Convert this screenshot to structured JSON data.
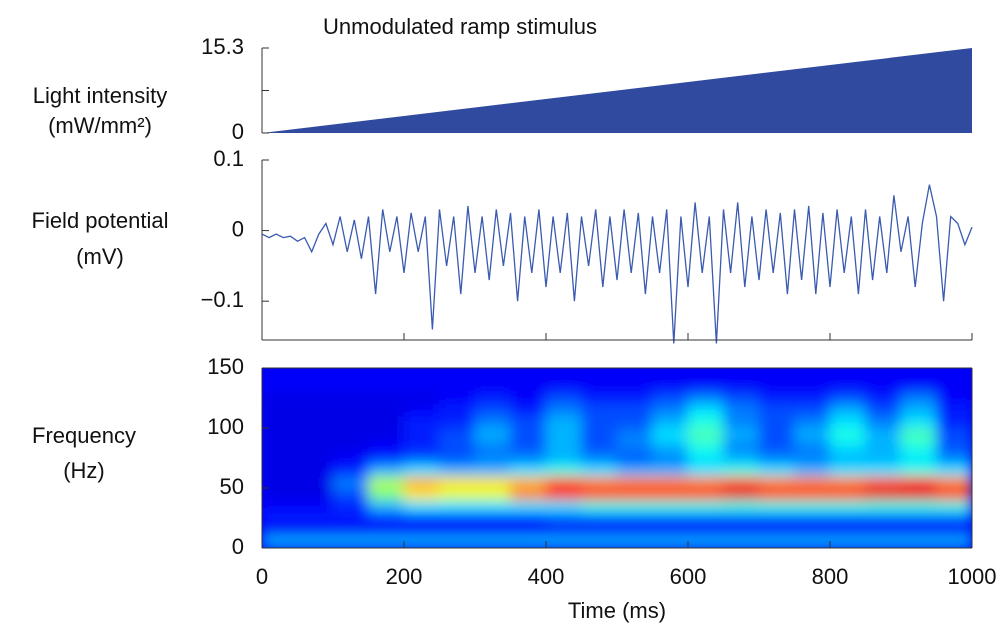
{
  "title": "Unmodulated ramp stimulus",
  "chart_data": [
    {
      "type": "area",
      "ylabel": [
        "Light intensity",
        "(mW/mm²)"
      ],
      "color": "#2f4a9f",
      "x": [
        0,
        1000
      ],
      "values": [
        0,
        15.3
      ],
      "xlim": [
        0,
        1000
      ],
      "ylim": [
        0,
        15.3
      ],
      "yticks": [
        0,
        15.3
      ],
      "yminorticks": [
        7.65
      ]
    },
    {
      "type": "line",
      "ylabel": [
        "Field potential",
        "(mV)"
      ],
      "color": "#3a5bb0",
      "x": [
        0,
        10,
        20,
        30,
        40,
        50,
        60,
        70,
        80,
        90,
        100,
        110,
        120,
        130,
        140,
        150,
        160,
        170,
        180,
        190,
        200,
        210,
        220,
        230,
        240,
        250,
        260,
        270,
        280,
        290,
        300,
        310,
        320,
        330,
        340,
        350,
        360,
        370,
        380,
        390,
        400,
        410,
        420,
        430,
        440,
        450,
        460,
        470,
        480,
        490,
        500,
        510,
        520,
        530,
        540,
        550,
        560,
        570,
        580,
        590,
        600,
        610,
        620,
        630,
        640,
        650,
        660,
        670,
        680,
        690,
        700,
        710,
        720,
        730,
        740,
        750,
        760,
        770,
        780,
        790,
        800,
        810,
        820,
        830,
        840,
        850,
        860,
        870,
        880,
        890,
        900,
        910,
        920,
        930,
        940,
        950,
        960,
        970,
        980,
        990,
        1000
      ],
      "values": [
        -0.005,
        -0.01,
        -0.005,
        -0.01,
        -0.008,
        -0.015,
        -0.01,
        -0.03,
        -0.005,
        0.01,
        -0.02,
        0.02,
        -0.03,
        0.015,
        -0.04,
        0.02,
        -0.09,
        0.03,
        -0.03,
        0.02,
        -0.06,
        0.025,
        -0.03,
        0.02,
        -0.14,
        0.03,
        -0.05,
        0.02,
        -0.09,
        0.035,
        -0.06,
        0.02,
        -0.07,
        0.03,
        -0.05,
        0.025,
        -0.1,
        0.02,
        -0.06,
        0.03,
        -0.08,
        0.02,
        -0.06,
        0.025,
        -0.1,
        0.02,
        -0.05,
        0.03,
        -0.08,
        0.02,
        -0.07,
        0.03,
        -0.06,
        0.025,
        -0.09,
        0.02,
        -0.06,
        0.03,
        -0.16,
        0.02,
        -0.08,
        0.04,
        -0.06,
        0.02,
        -0.16,
        0.03,
        -0.06,
        0.04,
        -0.08,
        0.02,
        -0.07,
        0.03,
        -0.06,
        0.025,
        -0.09,
        0.03,
        -0.07,
        0.035,
        -0.09,
        0.025,
        -0.08,
        0.03,
        -0.06,
        0.02,
        -0.09,
        0.03,
        -0.07,
        0.02,
        -0.06,
        0.05,
        -0.03,
        0.02,
        -0.08,
        0.01,
        0.065,
        0.02,
        -0.1,
        0.02,
        0.01,
        -0.02,
        0.005
      ],
      "xlim": [
        0,
        1000
      ],
      "xticks": [
        0,
        200,
        400,
        600,
        800,
        1000
      ],
      "ylim": [
        -0.155,
        0.1
      ],
      "yticks": [
        {
          "value": -0.1,
          "label": "−0.1"
        },
        0,
        0.1
      ]
    },
    {
      "type": "heatmap",
      "ylabel": [
        "Frequency",
        "(Hz)"
      ],
      "xlabel": "Time (ms)",
      "xbins": [
        0,
        50,
        100,
        150,
        200,
        250,
        300,
        350,
        400,
        450,
        500,
        550,
        600,
        650,
        700,
        750,
        800,
        850,
        900,
        950,
        1000
      ],
      "ybins": [
        0,
        10,
        20,
        30,
        40,
        50,
        60,
        70,
        80,
        90,
        100,
        110,
        120,
        130,
        140,
        150
      ],
      "z": [
        [
          0.3,
          0.3,
          0.3,
          0.3,
          0.3,
          0.3,
          0.3,
          0.3,
          0.3,
          0.3,
          0.3,
          0.3,
          0.3,
          0.3,
          0.3,
          0.3,
          0.3,
          0.3,
          0.3,
          0.3
        ],
        [
          0.12,
          0.12,
          0.12,
          0.12,
          0.12,
          0.12,
          0.12,
          0.12,
          0.12,
          0.12,
          0.12,
          0.12,
          0.12,
          0.12,
          0.12,
          0.12,
          0.12,
          0.12,
          0.12,
          0.12
        ],
        [
          0.15,
          0.15,
          0.15,
          0.15,
          0.15,
          0.15,
          0.15,
          0.15,
          0.2,
          0.2,
          0.2,
          0.2,
          0.2,
          0.2,
          0.2,
          0.2,
          0.2,
          0.2,
          0.2,
          0.2
        ],
        [
          0.12,
          0.12,
          0.15,
          0.3,
          0.35,
          0.35,
          0.35,
          0.35,
          0.35,
          0.4,
          0.4,
          0.4,
          0.4,
          0.4,
          0.4,
          0.4,
          0.4,
          0.4,
          0.4,
          0.4
        ],
        [
          0.1,
          0.1,
          0.2,
          0.5,
          0.65,
          0.6,
          0.6,
          0.75,
          0.85,
          0.85,
          0.85,
          0.85,
          0.85,
          0.9,
          0.85,
          0.85,
          0.85,
          0.9,
          0.9,
          0.85
        ],
        [
          0.1,
          0.1,
          0.25,
          0.55,
          0.7,
          0.65,
          0.65,
          0.7,
          0.8,
          0.75,
          0.75,
          0.75,
          0.75,
          0.8,
          0.75,
          0.75,
          0.75,
          0.8,
          0.85,
          0.75
        ],
        [
          0.1,
          0.1,
          0.15,
          0.3,
          0.35,
          0.3,
          0.3,
          0.35,
          0.4,
          0.35,
          0.3,
          0.3,
          0.35,
          0.4,
          0.35,
          0.3,
          0.35,
          0.35,
          0.4,
          0.35
        ],
        [
          0.1,
          0.1,
          0.12,
          0.15,
          0.2,
          0.2,
          0.25,
          0.25,
          0.3,
          0.25,
          0.2,
          0.25,
          0.35,
          0.3,
          0.25,
          0.25,
          0.3,
          0.3,
          0.35,
          0.25
        ],
        [
          0.1,
          0.1,
          0.1,
          0.12,
          0.15,
          0.2,
          0.25,
          0.2,
          0.3,
          0.2,
          0.25,
          0.3,
          0.4,
          0.25,
          0.2,
          0.25,
          0.35,
          0.3,
          0.4,
          0.2
        ],
        [
          0.1,
          0.1,
          0.1,
          0.1,
          0.15,
          0.2,
          0.3,
          0.2,
          0.3,
          0.2,
          0.25,
          0.35,
          0.45,
          0.3,
          0.2,
          0.3,
          0.4,
          0.3,
          0.45,
          0.2
        ],
        [
          0.1,
          0.1,
          0.1,
          0.1,
          0.15,
          0.15,
          0.25,
          0.2,
          0.3,
          0.2,
          0.2,
          0.3,
          0.4,
          0.25,
          0.2,
          0.25,
          0.35,
          0.25,
          0.35,
          0.15
        ],
        [
          0.1,
          0.1,
          0.1,
          0.1,
          0.12,
          0.15,
          0.2,
          0.15,
          0.25,
          0.2,
          0.2,
          0.25,
          0.35,
          0.25,
          0.2,
          0.2,
          0.3,
          0.2,
          0.3,
          0.15
        ],
        [
          0.1,
          0.1,
          0.1,
          0.1,
          0.1,
          0.12,
          0.15,
          0.12,
          0.2,
          0.15,
          0.15,
          0.2,
          0.25,
          0.2,
          0.15,
          0.15,
          0.2,
          0.15,
          0.25,
          0.12
        ],
        [
          0.12,
          0.12,
          0.12,
          0.12,
          0.12,
          0.12,
          0.12,
          0.12,
          0.12,
          0.12,
          0.12,
          0.12,
          0.12,
          0.12,
          0.12,
          0.12,
          0.12,
          0.12,
          0.12,
          0.12
        ],
        [
          0.12,
          0.12,
          0.12,
          0.12,
          0.12,
          0.12,
          0.12,
          0.12,
          0.12,
          0.12,
          0.12,
          0.12,
          0.12,
          0.12,
          0.12,
          0.12,
          0.12,
          0.12,
          0.12,
          0.12
        ]
      ],
      "xlim": [
        0,
        1000
      ],
      "xticks": [
        0,
        200,
        400,
        600,
        800,
        1000
      ],
      "ylim": [
        0,
        150
      ],
      "yticks": [
        0,
        50,
        100,
        150
      ]
    }
  ]
}
